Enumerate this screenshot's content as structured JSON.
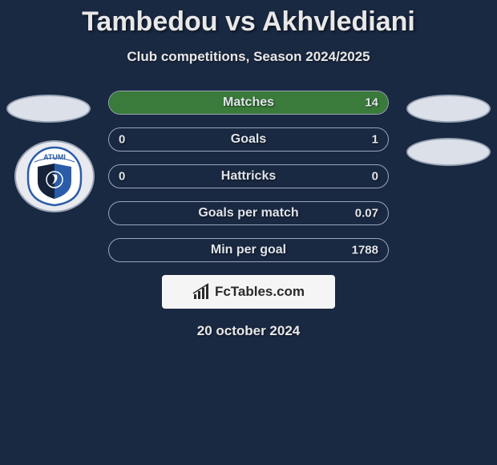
{
  "background_color": "#1a2942",
  "title": "Tambedou vs Akhvlediani",
  "subtitle": "Club competitions, Season 2024/2025",
  "date": "20 october 2024",
  "attribution": {
    "text": "FcTables.com",
    "icon": "bar-chart-icon"
  },
  "stats": {
    "bar_border_color": "#9aa5b8",
    "bar_bg_color": "#1a2942",
    "label_color": "#e0e4eb",
    "label_fontsize": 16,
    "value_fontsize": 15,
    "rows": [
      {
        "label": "Matches",
        "left_value": "",
        "right_value": "14",
        "left_fill_pct": 0,
        "right_fill_pct": 100,
        "left_color": "#3a7a3a",
        "right_color": "#3a7a3a"
      },
      {
        "label": "Goals",
        "left_value": "0",
        "right_value": "1",
        "left_fill_pct": 0,
        "right_fill_pct": 0,
        "left_color": "#3a7a3a",
        "right_color": "#3a7a3a"
      },
      {
        "label": "Hattricks",
        "left_value": "0",
        "right_value": "0",
        "left_fill_pct": 0,
        "right_fill_pct": 0,
        "left_color": "#3a7a3a",
        "right_color": "#3a7a3a"
      },
      {
        "label": "Goals per match",
        "left_value": "",
        "right_value": "0.07",
        "left_fill_pct": 0,
        "right_fill_pct": 0,
        "left_color": "#3a7a3a",
        "right_color": "#3a7a3a"
      },
      {
        "label": "Min per goal",
        "left_value": "",
        "right_value": "1788",
        "left_fill_pct": 0,
        "right_fill_pct": 0,
        "left_color": "#3a7a3a",
        "right_color": "#3a7a3a"
      }
    ]
  },
  "avatars": {
    "oval_bg": "#dce0e8",
    "oval_border": "#9aa5b8",
    "shield_bg": "#e8eaef",
    "shield_text_top": "ATUMI",
    "shield_colors": {
      "blue": "#2a5caa",
      "dark": "#15223a"
    }
  }
}
